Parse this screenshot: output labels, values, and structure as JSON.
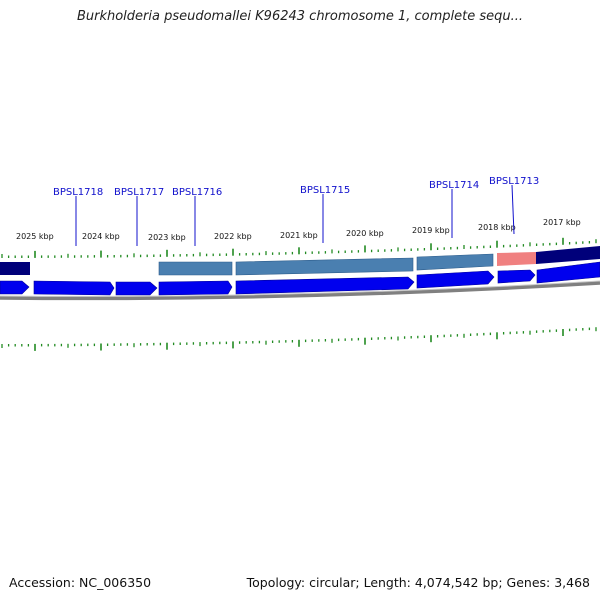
{
  "title": "Burkholderia pseudomallei K96243 chromosome 1, complete sequ...",
  "footer": {
    "accession_label": "Accession: NC_006350",
    "summary": "Topology: circular; Length: 4,074,542 bp; Genes: 3,468"
  },
  "scale_labels": [
    "2025 kbp",
    "2024 kbp",
    "2023 kbp",
    "2022 kbp",
    "2021 kbp",
    "2020 kbp",
    "2019 kbp",
    "2018 kbp",
    "2017 kbp"
  ],
  "gene_labels": [
    "BPSL1718",
    "BPSL1717",
    "BPSL1716",
    "BPSL1715",
    "BPSL1714",
    "BPSL1713"
  ],
  "colors": {
    "tick": "#228b22",
    "gene_arrow": "#0000ee",
    "feature_steel": "#4a7fb0",
    "feature_navy": "#00007a",
    "feature_pink": "#f08080",
    "backbone": "#808080",
    "label": "#1010cc"
  }
}
